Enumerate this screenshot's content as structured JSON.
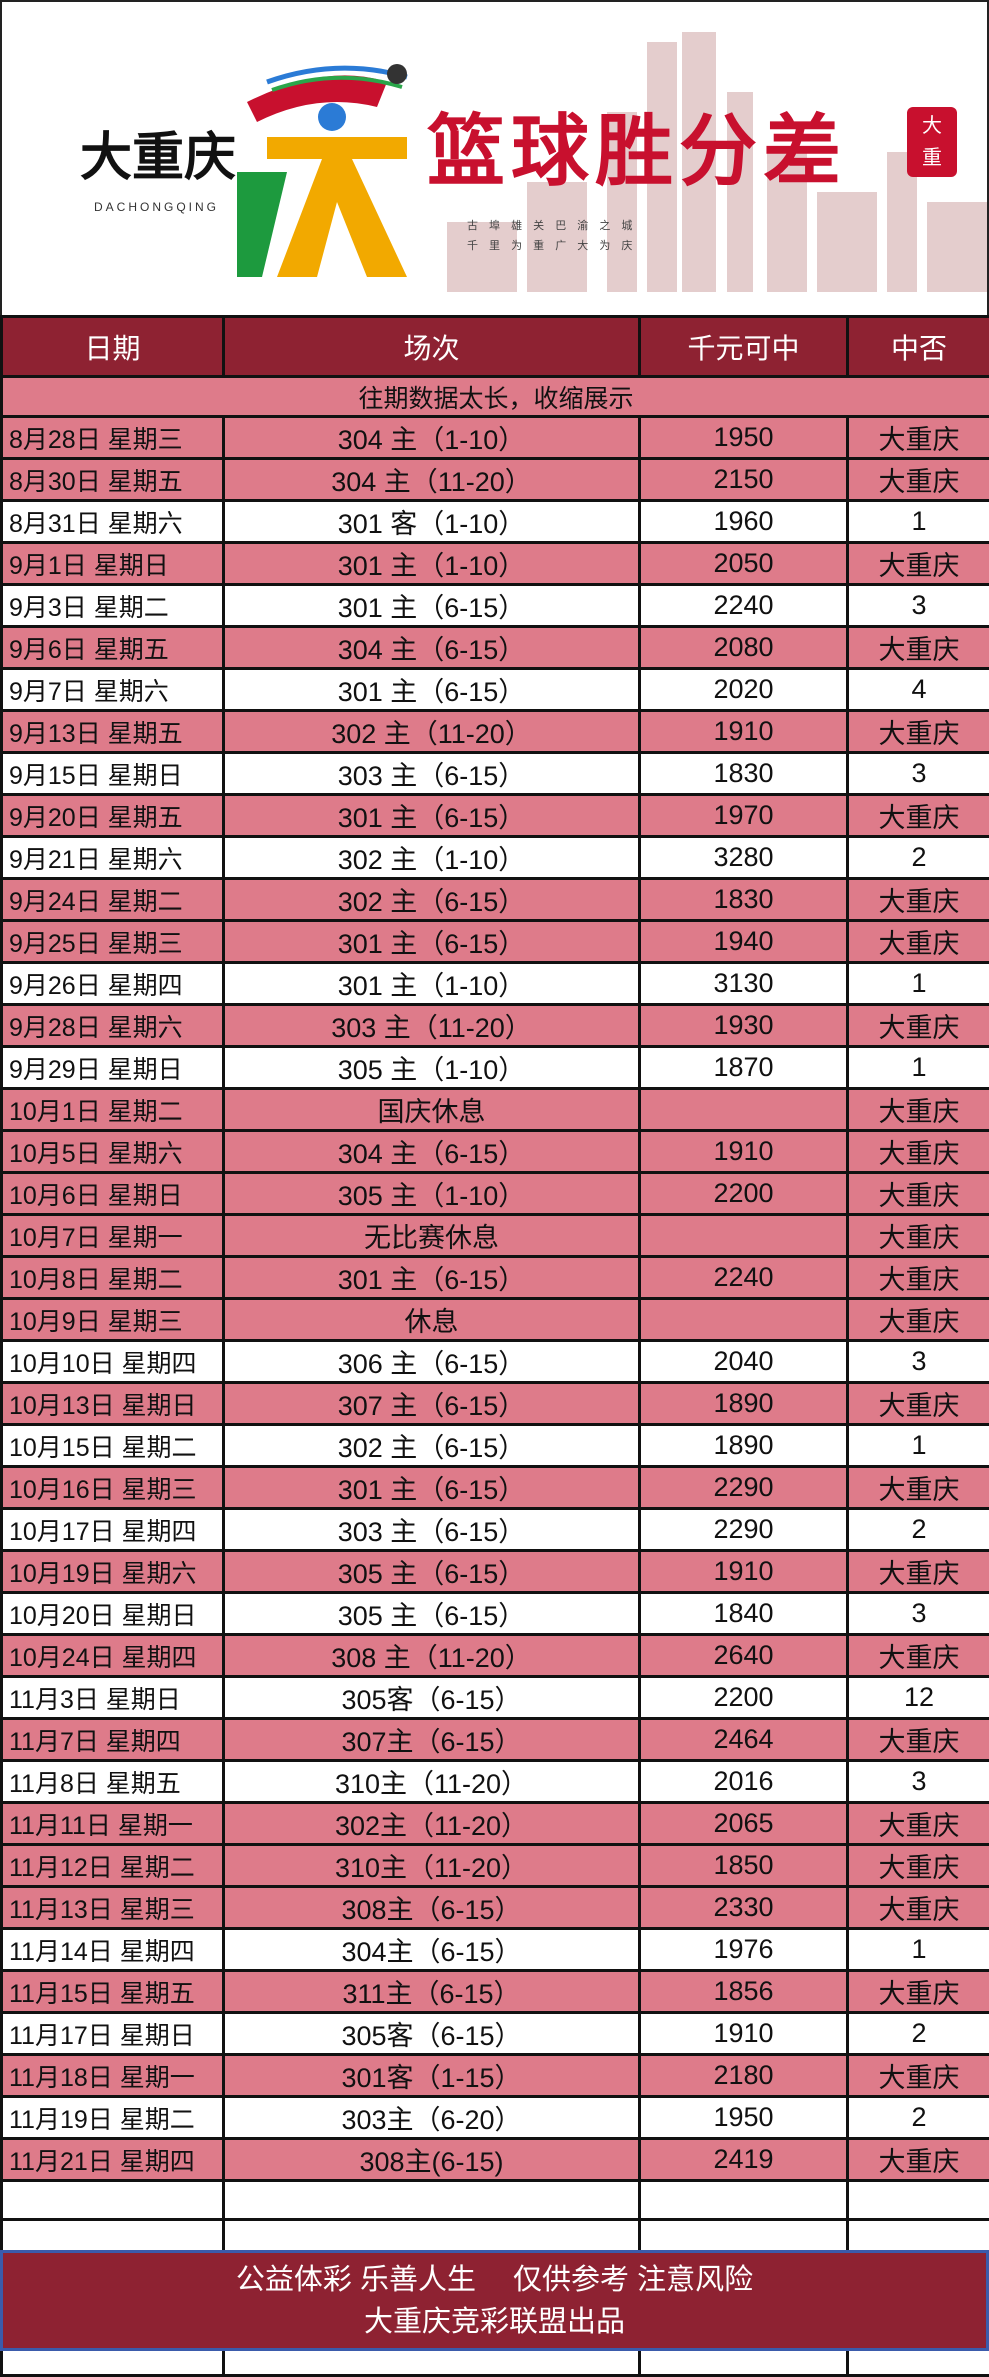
{
  "banner": {
    "brand": "大重庆",
    "brand_sub": "DACHONGQING",
    "emblem_badge": "大",
    "title": "篮球胜分差",
    "slogan_line1": "古 埠 雄 关    巴 渝 之 城",
    "slogan_line2": "千 里 为 重    广 大 为 庆",
    "seal": "大重"
  },
  "colors": {
    "header": "#8e2232",
    "highlight": "#de7b8a",
    "title": "#c8102e"
  },
  "table": {
    "headers": [
      "日期",
      "场次",
      "千元可中",
      "中否"
    ],
    "collapsed_note": "往期数据太长，收缩展示",
    "rows": [
      [
        "8月28日 星期三",
        "304 主（1-10）",
        "1950",
        "大重庆"
      ],
      [
        "8月30日 星期五",
        "304 主（11-20）",
        "2150",
        "大重庆"
      ],
      [
        "8月31日 星期六",
        "301 客（1-10）",
        "1960",
        "1"
      ],
      [
        "9月1日 星期日",
        "301 主（1-10）",
        "2050",
        "大重庆"
      ],
      [
        "9月3日 星期二",
        "301 主（6-15）",
        "2240",
        "3"
      ],
      [
        "9月6日 星期五",
        "304 主（6-15）",
        "2080",
        "大重庆"
      ],
      [
        "9月7日 星期六",
        "301 主（6-15）",
        "2020",
        "4"
      ],
      [
        "9月13日 星期五",
        "302 主（11-20）",
        "1910",
        "大重庆"
      ],
      [
        "9月15日 星期日",
        "303 主（6-15）",
        "1830",
        "3"
      ],
      [
        "9月20日 星期五",
        "301 主（6-15）",
        "1970",
        "大重庆"
      ],
      [
        "9月21日 星期六",
        "302 主（1-10）",
        "3280",
        "2"
      ],
      [
        "9月24日 星期二",
        "302 主（6-15）",
        "1830",
        "大重庆"
      ],
      [
        "9月25日 星期三",
        "301 主（6-15）",
        "1940",
        "大重庆"
      ],
      [
        "9月26日 星期四",
        "301 主（1-10）",
        "3130",
        "1"
      ],
      [
        "9月28日 星期六",
        "303 主（11-20）",
        "1930",
        "大重庆"
      ],
      [
        "9月29日 星期日",
        "305 主（1-10）",
        "1870",
        "1"
      ],
      [
        "10月1日 星期二",
        "国庆休息",
        "",
        "大重庆"
      ],
      [
        "10月5日 星期六",
        "304 主（6-15）",
        "1910",
        "大重庆"
      ],
      [
        "10月6日 星期日",
        "305 主（1-10）",
        "2200",
        "大重庆"
      ],
      [
        "10月7日 星期一",
        "无比赛休息",
        "",
        "大重庆"
      ],
      [
        "10月8日 星期二",
        "301 主（6-15）",
        "2240",
        "大重庆"
      ],
      [
        "10月9日 星期三",
        "休息",
        "",
        "大重庆"
      ],
      [
        "10月10日 星期四",
        "306 主（6-15）",
        "2040",
        "3"
      ],
      [
        "10月13日 星期日",
        "307 主（6-15）",
        "1890",
        "大重庆"
      ],
      [
        "10月15日 星期二",
        "302 主（6-15）",
        "1890",
        "1"
      ],
      [
        "10月16日 星期三",
        "301 主（6-15）",
        "2290",
        "大重庆"
      ],
      [
        "10月17日 星期四",
        "303 主（6-15）",
        "2290",
        "2"
      ],
      [
        "10月19日 星期六",
        "305 主（6-15）",
        "1910",
        "大重庆"
      ],
      [
        "10月20日 星期日",
        "305 主（6-15）",
        "1840",
        "3"
      ],
      [
        "10月24日 星期四",
        "308 主（11-20）",
        "2640",
        "大重庆"
      ],
      [
        "11月3日 星期日",
        "305客（6-15）",
        "2200",
        "12"
      ],
      [
        "11月7日 星期四",
        "307主（6-15）",
        "2464",
        "大重庆"
      ],
      [
        "11月8日 星期五",
        "310主（11-20）",
        "2016",
        "3"
      ],
      [
        "11月11日 星期一",
        "302主（11-20）",
        "2065",
        "大重庆"
      ],
      [
        "11月12日 星期二",
        "310主（11-20）",
        "1850",
        "大重庆"
      ],
      [
        "11月13日 星期三",
        "308主（6-15）",
        "2330",
        "大重庆"
      ],
      [
        "11月14日 星期四",
        "304主（6-15）",
        "1976",
        "1"
      ],
      [
        "11月15日 星期五",
        "311主（6-15）",
        "1856",
        "大重庆"
      ],
      [
        "11月17日 星期日",
        "305客（6-15）",
        "1910",
        "2"
      ],
      [
        "11月18日 星期一",
        "301客（1-15）",
        "2180",
        "大重庆"
      ],
      [
        "11月19日 星期二",
        "303主（6-20）",
        "1950",
        "2"
      ],
      [
        "11月21日 星期四",
        "308主(6-15)",
        "2419",
        "大重庆"
      ]
    ],
    "empty_rows": 5
  },
  "footer": {
    "line1": "公益体彩 乐善人生　 仅供参考 注意风险",
    "line2": "大重庆竞彩联盟出品"
  }
}
